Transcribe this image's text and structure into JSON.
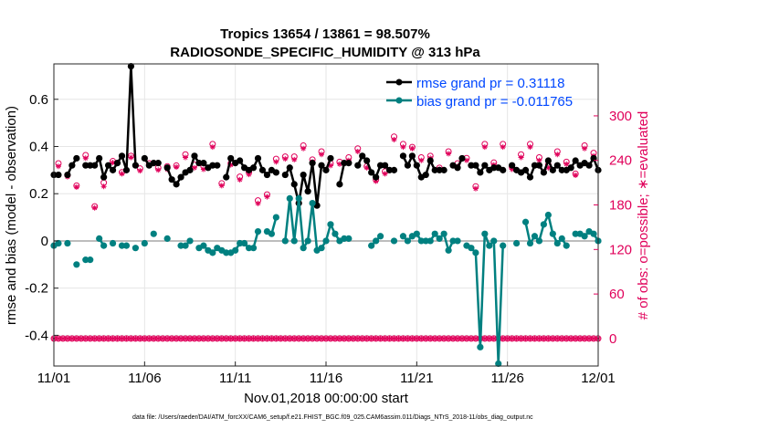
{
  "chart_data": {
    "type": "line",
    "title": "Tropics 13654 / 13861 = 98.507%",
    "subtitle": "RADIOSONDE_SPECIFIC_HUMIDITY @ 313 hPa",
    "xlabel": "Nov.01,2018 00:00:00 start",
    "ylabel": "rmse and bias (model - observation)",
    "y2label": "# of obs: o=possible; ∗=evaluated",
    "footnote": "data file: /Users/raeder/DAI/ATM_forcXX/CAM6_setup/f.e21.FHIST_BGC.f09_025.CAM6assim.011/Diags_NTrS_2018-11/obs_diag_output.nc",
    "xlim": [
      0,
      30
    ],
    "ylim": [
      -0.53,
      0.75
    ],
    "y2lim": [
      -37,
      370
    ],
    "x_ticks": [
      {
        "x": 0,
        "label": "11/01"
      },
      {
        "x": 5,
        "label": "11/06"
      },
      {
        "x": 10,
        "label": "11/11"
      },
      {
        "x": 15,
        "label": "11/16"
      },
      {
        "x": 20,
        "label": "11/21"
      },
      {
        "x": 25,
        "label": "11/26"
      },
      {
        "x": 30,
        "label": "12/01"
      }
    ],
    "y_ticks": [
      {
        "v": -0.4,
        "label": "-0.4"
      },
      {
        "v": -0.2,
        "label": "-0.2"
      },
      {
        "v": 0,
        "label": "0"
      },
      {
        "v": 0.2,
        "label": "0.2"
      },
      {
        "v": 0.4,
        "label": "0.4"
      },
      {
        "v": 0.6,
        "label": "0.6"
      }
    ],
    "y2_ticks": [
      {
        "v": 0,
        "label": "0"
      },
      {
        "v": 60,
        "label": "60"
      },
      {
        "v": 120,
        "label": "120"
      },
      {
        "v": 180,
        "label": "180"
      },
      {
        "v": 240,
        "label": "240"
      },
      {
        "v": 300,
        "label": "300"
      }
    ],
    "x": [
      0.0,
      0.25,
      0.5,
      0.75,
      1.0,
      1.25,
      1.5,
      1.75,
      2.0,
      2.25,
      2.5,
      2.75,
      3.0,
      3.25,
      3.5,
      3.75,
      4.0,
      4.25,
      4.5,
      4.75,
      5.0,
      5.25,
      5.5,
      5.75,
      6.0,
      6.25,
      6.5,
      6.75,
      7.0,
      7.25,
      7.5,
      7.75,
      8.0,
      8.25,
      8.5,
      8.75,
      9.0,
      9.25,
      9.5,
      9.75,
      10.0,
      10.25,
      10.5,
      10.75,
      11.0,
      11.25,
      11.5,
      11.75,
      12.0,
      12.25,
      12.5,
      12.75,
      13.0,
      13.25,
      13.5,
      13.75,
      14.0,
      14.25,
      14.5,
      14.75,
      15.0,
      15.25,
      15.5,
      15.75,
      16.0,
      16.25,
      16.5,
      16.75,
      17.0,
      17.25,
      17.5,
      17.75,
      18.0,
      18.25,
      18.5,
      18.75,
      19.0,
      19.25,
      19.5,
      19.75,
      20.0,
      20.25,
      20.5,
      20.75,
      21.0,
      21.25,
      21.5,
      21.75,
      22.0,
      22.25,
      22.5,
      22.75,
      23.0,
      23.25,
      23.5,
      23.75,
      24.0,
      24.25,
      24.5,
      24.75,
      25.0,
      25.25,
      25.5,
      25.75,
      26.0,
      26.25,
      26.5,
      26.75,
      27.0,
      27.25,
      27.5,
      27.75,
      28.0,
      28.25,
      28.5,
      28.75,
      29.0,
      29.25,
      29.5,
      29.75,
      30.0
    ],
    "series": [
      {
        "name": "rmse grand pr = 0.31118",
        "color": "#000000",
        "values": [
          0.28,
          0.28,
          null,
          0.28,
          0.32,
          0.35,
          null,
          0.32,
          0.32,
          0.32,
          0.35,
          0.27,
          0.32,
          0.3,
          0.33,
          0.36,
          0.3,
          0.74,
          0.32,
          null,
          0.35,
          0.32,
          0.33,
          0.33,
          null,
          0.31,
          0.26,
          0.24,
          0.27,
          0.29,
          0.3,
          0.36,
          0.33,
          0.33,
          0.31,
          0.32,
          0.32,
          null,
          0.27,
          0.35,
          0.33,
          0.34,
          0.31,
          0.3,
          0.31,
          0.35,
          0.3,
          0.28,
          0.3,
          0.29,
          null,
          0.28,
          0.31,
          0.24,
          0.16,
          0.28,
          0.21,
          0.33,
          0.15,
          0.32,
          0.3,
          0.35,
          null,
          0.24,
          0.33,
          0.33,
          null,
          0.32,
          0.36,
          0.34,
          0.29,
          0.27,
          0.32,
          0.32,
          0.3,
          0.3,
          null,
          0.36,
          0.32,
          0.36,
          0.32,
          0.27,
          0.28,
          0.34,
          0.3,
          0.3,
          0.3,
          null,
          0.32,
          0.31,
          0.35,
          null,
          0.32,
          0.32,
          0.29,
          0.32,
          0.3,
          0.31,
          0.31,
          0.3,
          null,
          0.32,
          0.3,
          0.29,
          0.3,
          0.27,
          0.32,
          0.32,
          0.29,
          0.34,
          0.3,
          0.32,
          0.3,
          0.3,
          0.31,
          0.34,
          0.32,
          0.33,
          0.32,
          0.35,
          0.3
        ]
      },
      {
        "name": "bias grand pr = -0.011765",
        "color": "#008080",
        "values": [
          -0.02,
          -0.01,
          null,
          -0.01,
          null,
          -0.1,
          null,
          -0.08,
          -0.08,
          null,
          0.01,
          -0.02,
          null,
          -0.01,
          null,
          -0.02,
          -0.02,
          null,
          -0.03,
          null,
          -0.01,
          null,
          0.03,
          null,
          null,
          0.01,
          null,
          null,
          -0.02,
          -0.02,
          0.0,
          null,
          -0.03,
          -0.02,
          -0.04,
          -0.05,
          -0.03,
          -0.04,
          -0.05,
          -0.05,
          -0.04,
          -0.01,
          -0.01,
          -0.03,
          -0.03,
          0.04,
          null,
          0.04,
          0.03,
          0.1,
          null,
          0.0,
          0.18,
          0.0,
          0.18,
          -0.03,
          0.0,
          0.16,
          -0.04,
          -0.03,
          0.0,
          0.07,
          0.03,
          0.0,
          0.01,
          0.01,
          null,
          null,
          null,
          null,
          -0.02,
          0.0,
          0.02,
          null,
          null,
          0.0,
          null,
          0.02,
          0.0,
          0.02,
          0.03,
          0.0,
          0.0,
          0.0,
          0.03,
          0.01,
          0.03,
          -0.04,
          0.0,
          0.0,
          null,
          -0.02,
          -0.03,
          -0.05,
          -0.45,
          0.03,
          -0.02,
          0.0,
          -0.52,
          -0.02,
          null,
          null,
          -0.01,
          null,
          0.08,
          -0.01,
          0.02,
          0.0,
          0.07,
          0.11,
          0.03,
          -0.01,
          0.01,
          -0.02,
          null,
          0.03,
          0.03,
          0.02,
          0.04,
          0.03,
          0.0
        ]
      }
    ],
    "obs_possible": [
      0,
      0,
      0,
      0,
      0,
      0,
      0,
      0,
      0,
      0,
      0,
      0,
      0,
      0,
      0,
      0,
      0,
      0,
      0,
      0,
      0,
      0,
      0,
      0,
      0,
      0,
      0,
      0,
      0,
      0,
      0,
      0,
      0,
      0,
      0,
      0,
      0,
      0,
      0,
      0,
      0,
      0,
      0,
      0,
      0,
      0,
      0,
      0,
      0,
      0,
      0,
      0,
      0,
      0,
      0,
      0,
      0,
      0,
      0,
      0,
      0,
      0,
      0,
      0,
      0,
      0,
      0,
      0,
      0,
      0,
      0,
      0,
      0,
      0,
      0,
      0,
      0,
      0,
      0,
      0,
      0,
      0,
      0,
      0,
      0,
      0,
      0,
      0,
      0,
      0,
      0,
      0,
      0,
      0,
      0,
      0,
      0,
      0,
      0,
      0,
      0,
      0,
      0,
      0,
      0,
      0,
      0,
      0,
      0,
      0,
      0,
      0,
      0,
      0,
      0,
      0,
      0,
      0,
      0,
      0,
      0
    ],
    "obs_evaluated": [
      0,
      0,
      0,
      0,
      0,
      0,
      0,
      0,
      0,
      0,
      0,
      0,
      0,
      0,
      0,
      0,
      0,
      0,
      0,
      0,
      0,
      0,
      0,
      0,
      0,
      0,
      0,
      0,
      0,
      0,
      0,
      0,
      0,
      0,
      0,
      0,
      0,
      0,
      0,
      0,
      0,
      0,
      0,
      0,
      0,
      0,
      0,
      0,
      0,
      0,
      0,
      0,
      0,
      0,
      0,
      0,
      0,
      0,
      0,
      0,
      0,
      0,
      0,
      0,
      0,
      0,
      0,
      0,
      0,
      0,
      0,
      0,
      0,
      0,
      0,
      0,
      0,
      0,
      0,
      0,
      0,
      0,
      0,
      0,
      0,
      0,
      0,
      0,
      0,
      0,
      0,
      0,
      0,
      0,
      0,
      0,
      0,
      0,
      0,
      0,
      0,
      0,
      0,
      0,
      0,
      0,
      0,
      0,
      0,
      0,
      0,
      0,
      0,
      0,
      0,
      0,
      0,
      0,
      0,
      0,
      0
    ],
    "obs_possible_upper_x": [
      0.25,
      0.75,
      1.25,
      1.75,
      2.25,
      2.75,
      3.25,
      3.75,
      4.25,
      4.75,
      5.25,
      5.75,
      6.25,
      6.75,
      7.25,
      7.75,
      8.25,
      8.75,
      9.25,
      9.75,
      10.25,
      10.75,
      11.25,
      11.75,
      12.25,
      12.75,
      13.25,
      13.75,
      14.25,
      14.75,
      15.25,
      15.75,
      16.25,
      16.75,
      17.25,
      17.75,
      18.25,
      18.75,
      19.25,
      19.75,
      20.25,
      20.75,
      21.25,
      21.75,
      22.25,
      22.75,
      23.25,
      23.75,
      24.25,
      24.75,
      25.25,
      25.75,
      26.25,
      26.75,
      27.25,
      27.75,
      28.25,
      28.75,
      29.25,
      29.75
    ],
    "obs_possible_upper": [
      236,
      220,
      206,
      247,
      178,
      210,
      239,
      224,
      246,
      229,
      236,
      230,
      232,
      233,
      248,
      234,
      232,
      262,
      209,
      236,
      218,
      224,
      186,
      194,
      242,
      245,
      245,
      260,
      241,
      252,
      236,
      238,
      244,
      256,
      232,
      214,
      225,
      272,
      262,
      258,
      244,
      246,
      230,
      252,
      236,
      243,
      205,
      262,
      237,
      262,
      231,
      248,
      262,
      244,
      234,
      252,
      238,
      222,
      260,
      250
    ],
    "obs_evaluated_upper": [
      232,
      218,
      204,
      243,
      176,
      205,
      237,
      222,
      244,
      226,
      233,
      227,
      228,
      231,
      244,
      230,
      228,
      258,
      206,
      234,
      214,
      221,
      182,
      191,
      238,
      242,
      241,
      256,
      238,
      248,
      233,
      235,
      240,
      252,
      230,
      212,
      222,
      268,
      258,
      256,
      240,
      243,
      228,
      249,
      232,
      240,
      202,
      258,
      234,
      258,
      228,
      244,
      258,
      240,
      230,
      248,
      235,
      220,
      256,
      246
    ]
  },
  "legend": [
    {
      "label": "rmse grand pr = 0.31118",
      "color": "#000000"
    },
    {
      "label": "bias grand pr = -0.011765",
      "color": "#008080"
    }
  ]
}
